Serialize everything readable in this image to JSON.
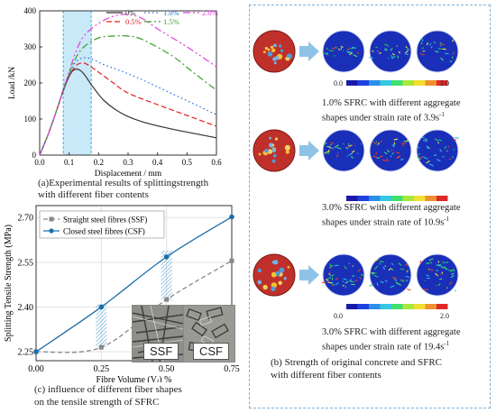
{
  "panel_a": {
    "caption_line1": "(a)Experimental results of splittingstrength",
    "caption_line2": "with different fiber contents"
  },
  "panel_b": {
    "rows": [
      {
        "caption_line1": "1.0% SFRC with different aggregate",
        "caption_line2": "shapes under strain rate of 3.9s",
        "sup": "-1"
      },
      {
        "caption_line1": "3.0% SFRC with different aggregate",
        "caption_line2": "shapes under strain rate of 10.9s",
        "sup": "-1"
      },
      {
        "caption_line1": "3.0% SFRC with different aggregate",
        "caption_line2": "shapes under strain rate of 19.4s",
        "sup": "-1"
      }
    ],
    "scale_min": "0.0",
    "scale_max": "2.0",
    "caption_line1": "(b) Strength of original concrete and SFRC",
    "caption_line2": "with different fiber contents",
    "colors": {
      "specimen": "#c0302a",
      "sim_bg": "#1a2fb8",
      "border": "#7fb1d6"
    }
  },
  "panel_c": {
    "caption_line1": "(c) influence of different fiber shapes",
    "caption_line2": "on the tensile strength of SFRC",
    "photo_labels": [
      "SSF",
      "CSF"
    ]
  },
  "chart_data": [
    {
      "type": "line",
      "xlabel": "Displacement / mm",
      "ylabel": "Load /kN",
      "xlim": [
        0,
        0.6
      ],
      "ylim": [
        0,
        400
      ],
      "xticks": [
        "0.0",
        "0.1",
        "0.2",
        "0.3",
        "0.4",
        "0.5",
        "0.6"
      ],
      "yticks": [
        "0",
        "100",
        "200",
        "300",
        "400"
      ],
      "highlight_band": [
        0.08,
        0.175
      ],
      "series": [
        {
          "name": "0%",
          "color": "#333333",
          "dash": "",
          "x": [
            0,
            0.03,
            0.06,
            0.09,
            0.11,
            0.13,
            0.15,
            0.18,
            0.22,
            0.28,
            0.35,
            0.45,
            0.6
          ],
          "y": [
            0,
            60,
            130,
            200,
            232,
            238,
            225,
            190,
            150,
            115,
            92,
            72,
            48
          ]
        },
        {
          "name": "0.5%",
          "color": "#e02020",
          "dash": "6,3",
          "x": [
            0,
            0.03,
            0.06,
            0.09,
            0.12,
            0.14,
            0.16,
            0.2,
            0.25,
            0.3,
            0.4,
            0.5,
            0.6
          ],
          "y": [
            0,
            60,
            130,
            205,
            245,
            255,
            252,
            230,
            200,
            172,
            140,
            110,
            80
          ]
        },
        {
          "name": "1.0%",
          "color": "#1f6fd6",
          "dash": "1.5,3",
          "x": [
            0,
            0.03,
            0.06,
            0.09,
            0.12,
            0.15,
            0.18,
            0.22,
            0.28,
            0.35,
            0.45,
            0.6
          ],
          "y": [
            0,
            60,
            130,
            205,
            255,
            270,
            265,
            250,
            232,
            208,
            170,
            112
          ]
        },
        {
          "name": "1.5%",
          "color": "#3aa02a",
          "dash": "8,3,2,3",
          "x": [
            0,
            0.03,
            0.06,
            0.09,
            0.12,
            0.15,
            0.2,
            0.25,
            0.3,
            0.35,
            0.45,
            0.52,
            0.6
          ],
          "y": [
            0,
            60,
            130,
            205,
            265,
            300,
            325,
            330,
            330,
            320,
            275,
            230,
            180
          ]
        },
        {
          "name": "2.0%",
          "color": "#e040d8",
          "dash": "8,3,2,3,2,3",
          "x": [
            0,
            0.03,
            0.06,
            0.09,
            0.12,
            0.15,
            0.2,
            0.25,
            0.3,
            0.35,
            0.4,
            0.5,
            0.6
          ],
          "y": [
            0,
            60,
            130,
            205,
            280,
            330,
            365,
            385,
            390,
            378,
            350,
            300,
            245
          ]
        }
      ]
    },
    {
      "type": "line",
      "xlabel": "Fibre Volume (V",
      "xlabel_sub": "f",
      "xlabel_tail": ") %",
      "ylabel": "Splitting Tensile Strength (MPa)",
      "xlim": [
        0,
        0.75
      ],
      "ylim": [
        2.22,
        2.74
      ],
      "xticks": [
        "0.00",
        "0.25",
        "0.50",
        "0.75"
      ],
      "yticks": [
        "2.25",
        "2.40",
        "2.55",
        "2.70"
      ],
      "series": [
        {
          "name": "Straight steel fibres (SSF)",
          "color": "#888888",
          "dash": "5,3",
          "marker": "square",
          "x": [
            0,
            0.25,
            0.5,
            0.75
          ],
          "y": [
            2.25,
            2.265,
            2.425,
            2.555
          ]
        },
        {
          "name": "Closed steel fibres  (CSF)",
          "color": "#1e6ea8",
          "dash": "",
          "marker": "circle",
          "x": [
            0,
            0.25,
            0.5,
            0.75
          ],
          "y": [
            2.25,
            2.4,
            2.568,
            2.702
          ]
        }
      ]
    }
  ]
}
